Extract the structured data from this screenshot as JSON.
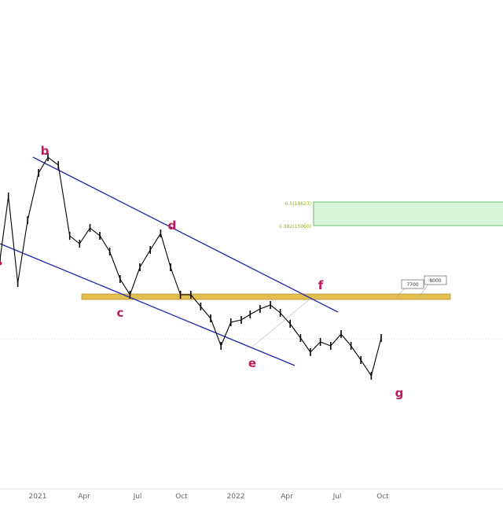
{
  "chart_data": {
    "type": "line",
    "title": "",
    "xlabel": "",
    "ylabel": "",
    "x_ticks": [
      "2021",
      "Apr",
      "Jul",
      "Oct",
      "2022",
      "Apr",
      "Jul",
      "Oct"
    ],
    "x": [
      "2020-10-15",
      "2020-11-01",
      "2020-11-20",
      "2020-12-10",
      "2021-01-01",
      "2021-01-20",
      "2021-02-10",
      "2021-03-05",
      "2021-03-25",
      "2021-04-15",
      "2021-05-05",
      "2021-05-25",
      "2021-06-15",
      "2021-07-05",
      "2021-07-25",
      "2021-08-15",
      "2021-09-05",
      "2021-09-25",
      "2021-10-15",
      "2021-11-05",
      "2021-11-25",
      "2021-12-15",
      "2022-01-05",
      "2022-01-25",
      "2022-02-15",
      "2022-03-05",
      "2022-03-25",
      "2022-04-15",
      "2022-05-05",
      "2022-05-25",
      "2022-06-15",
      "2022-07-05",
      "2022-07-25",
      "2022-08-15",
      "2022-09-05",
      "2022-09-25",
      "2022-10-15",
      "2022-11-05",
      "2022-11-25"
    ],
    "series": [
      {
        "name": "",
        "color": "#000000",
        "values": [
          330,
          250,
          360,
          280,
          220,
          200,
          210,
          300,
          310,
          290,
          300,
          320,
          355,
          375,
          340,
          318,
          297,
          340,
          375,
          375,
          390,
          405,
          440,
          410,
          407,
          400,
          393,
          388,
          398,
          412,
          430,
          448,
          435,
          440,
          425,
          440,
          458,
          478,
          430
        ]
      }
    ],
    "annotations": {
      "wave_labels": [
        {
          "text": "b",
          "color": "#c2185b"
        },
        {
          "text": "c",
          "color": "#c2185b"
        },
        {
          "text": "d",
          "color": "#c2185b"
        },
        {
          "text": "e",
          "color": "#c2185b"
        },
        {
          "text": "f",
          "color": "#c2185b"
        },
        {
          "text": "g",
          "color": "#c2185b"
        }
      ],
      "channel_color": "#1f27b4",
      "support_band": {
        "color": "#e2be4e"
      },
      "fib_zone": {
        "labels": [
          "0.5(18623)",
          "0.382(15060)"
        ],
        "fill": "#d6f5d6",
        "stroke": "#66bb66",
        "label_color": "#8bb800"
      },
      "callouts": [
        "7700",
        "8000"
      ]
    },
    "grid": false,
    "legend": "none"
  }
}
